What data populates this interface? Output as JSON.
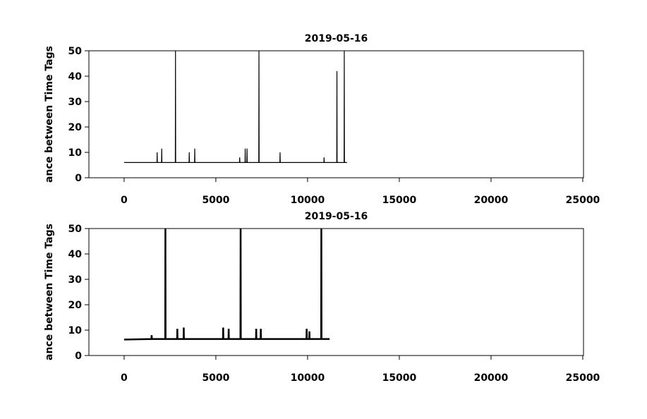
{
  "chart_data": [
    {
      "type": "line",
      "title": "2019-05-16",
      "y_label": "ance between Time Tags",
      "color": "#000000",
      "line_width": 1.2,
      "x": [
        0,
        1790,
        1800,
        1810,
        2040,
        2050,
        2060,
        2790,
        2800,
        2810,
        3540,
        3550,
        3560,
        3840,
        3850,
        3860,
        6290,
        6300,
        6310,
        6590,
        6600,
        6610,
        6690,
        6700,
        6710,
        7340,
        7350,
        7360,
        8490,
        8500,
        8510,
        10890,
        10900,
        10910,
        11590,
        11600,
        11610,
        11990,
        12000,
        12010,
        12150
      ],
      "values": [
        6,
        6,
        10,
        6,
        6,
        11.5,
        6,
        6,
        50,
        6,
        6,
        10,
        6,
        6,
        11.5,
        6,
        6,
        8,
        6,
        6,
        11.5,
        6,
        6,
        11.5,
        6,
        6,
        50,
        6,
        6,
        10,
        6,
        6,
        8,
        6,
        6,
        42,
        6,
        6,
        50,
        6,
        6
      ],
      "xlim": [
        -1920,
        25040
      ],
      "ylim": [
        0,
        50
      ],
      "xticks": [
        0,
        5000,
        10000,
        15000,
        20000,
        25000
      ],
      "yticks": [
        0,
        10,
        20,
        30,
        40,
        50
      ]
    },
    {
      "type": "line",
      "title": "2019-05-16",
      "y_label": "ance between Time Tags",
      "color": "#000000",
      "line_width": 2.5,
      "x": [
        0,
        1490,
        1500,
        1510,
        2240,
        2250,
        2260,
        2890,
        2900,
        2910,
        3240,
        3250,
        3260,
        5390,
        5400,
        5410,
        5690,
        5700,
        5710,
        6340,
        6350,
        6360,
        7190,
        7200,
        7210,
        7440,
        7450,
        7460,
        9940,
        9950,
        9960,
        10090,
        10100,
        10110,
        10740,
        10750,
        10760,
        11200
      ],
      "values": [
        6.3,
        6.5,
        8,
        6.5,
        6.5,
        50,
        6.5,
        6.5,
        10.5,
        6.5,
        6.5,
        11,
        6.5,
        6.5,
        11,
        6.5,
        6.5,
        10.5,
        6.5,
        6.5,
        50,
        6.5,
        6.5,
        10.5,
        6.5,
        6.5,
        10.5,
        6.5,
        6.5,
        10.5,
        6.5,
        6.5,
        9.5,
        6.5,
        6.5,
        50,
        6.5,
        6.5
      ],
      "xlim": [
        -1920,
        25040
      ],
      "ylim": [
        0,
        50
      ],
      "xticks": [
        0,
        5000,
        10000,
        15000,
        20000,
        25000
      ],
      "yticks": [
        0,
        10,
        20,
        30,
        40,
        50
      ]
    }
  ]
}
